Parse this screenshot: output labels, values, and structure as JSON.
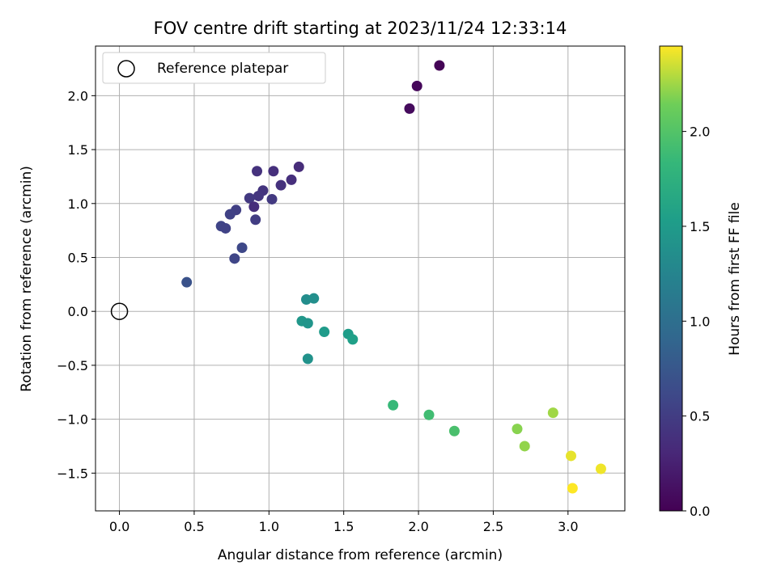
{
  "chart_data": {
    "type": "scatter",
    "title": "FOV centre drift starting at 2023/11/24 12:33:14",
    "xlabel": "Angular distance from reference (arcmin)",
    "ylabel": "Rotation from reference (arcmin)",
    "xlim": [
      -0.16,
      3.38
    ],
    "ylim": [
      -1.85,
      2.46
    ],
    "xticks": [
      0.0,
      0.5,
      1.0,
      1.5,
      2.0,
      2.5,
      3.0
    ],
    "xtick_labels": [
      "0.0",
      "0.5",
      "1.0",
      "1.5",
      "2.0",
      "2.5",
      "3.0"
    ],
    "yticks": [
      -1.5,
      -1.0,
      -0.5,
      0.0,
      0.5,
      1.0,
      1.5,
      2.0
    ],
    "ytick_labels": [
      "−1.5",
      "−1.0",
      "−0.5",
      "0.0",
      "0.5",
      "1.0",
      "1.5",
      "2.0"
    ],
    "grid": true,
    "legend_position": "top-left",
    "reference": {
      "name": "Reference platepar",
      "x": 0.0,
      "y": 0.0
    },
    "colorbar": {
      "label": "Hours from first FF file",
      "colormap": "viridis",
      "range": [
        0.0,
        2.45
      ],
      "ticks": [
        0.0,
        0.5,
        1.0,
        1.5,
        2.0
      ],
      "tick_labels": [
        "0.0",
        "0.5",
        "1.0",
        "1.5",
        "2.0"
      ]
    },
    "points": [
      {
        "x": 2.14,
        "y": 2.28,
        "hours": 0.02
      },
      {
        "x": 1.99,
        "y": 2.09,
        "hours": 0.05
      },
      {
        "x": 1.94,
        "y": 1.88,
        "hours": 0.08
      },
      {
        "x": 1.2,
        "y": 1.34,
        "hours": 0.35
      },
      {
        "x": 1.03,
        "y": 1.3,
        "hours": 0.38
      },
      {
        "x": 0.92,
        "y": 1.3,
        "hours": 0.4
      },
      {
        "x": 1.15,
        "y": 1.22,
        "hours": 0.37
      },
      {
        "x": 1.08,
        "y": 1.17,
        "hours": 0.39
      },
      {
        "x": 0.96,
        "y": 1.12,
        "hours": 0.42
      },
      {
        "x": 0.93,
        "y": 1.07,
        "hours": 0.44
      },
      {
        "x": 0.87,
        "y": 1.05,
        "hours": 0.46
      },
      {
        "x": 1.02,
        "y": 1.04,
        "hours": 0.47
      },
      {
        "x": 0.9,
        "y": 0.97,
        "hours": 0.36
      },
      {
        "x": 0.78,
        "y": 0.94,
        "hours": 0.52
      },
      {
        "x": 0.74,
        "y": 0.9,
        "hours": 0.54
      },
      {
        "x": 0.91,
        "y": 0.85,
        "hours": 0.5
      },
      {
        "x": 0.68,
        "y": 0.79,
        "hours": 0.57
      },
      {
        "x": 0.71,
        "y": 0.77,
        "hours": 0.55
      },
      {
        "x": 0.82,
        "y": 0.59,
        "hours": 0.6
      },
      {
        "x": 0.77,
        "y": 0.49,
        "hours": 0.58
      },
      {
        "x": 0.45,
        "y": 0.27,
        "hours": 0.7
      },
      {
        "x": 1.25,
        "y": 0.11,
        "hours": 1.35
      },
      {
        "x": 1.3,
        "y": 0.12,
        "hours": 1.37
      },
      {
        "x": 1.22,
        "y": -0.09,
        "hours": 1.45
      },
      {
        "x": 1.26,
        "y": -0.11,
        "hours": 1.43
      },
      {
        "x": 1.37,
        "y": -0.19,
        "hours": 1.5
      },
      {
        "x": 1.53,
        "y": -0.21,
        "hours": 1.52
      },
      {
        "x": 1.56,
        "y": -0.26,
        "hours": 1.55
      },
      {
        "x": 1.26,
        "y": -0.44,
        "hours": 1.4
      },
      {
        "x": 1.83,
        "y": -0.87,
        "hours": 1.85
      },
      {
        "x": 2.07,
        "y": -0.96,
        "hours": 1.9
      },
      {
        "x": 2.24,
        "y": -1.11,
        "hours": 1.95
      },
      {
        "x": 2.66,
        "y": -1.09,
        "hours": 2.2
      },
      {
        "x": 2.71,
        "y": -1.25,
        "hours": 2.22
      },
      {
        "x": 2.9,
        "y": -0.94,
        "hours": 2.25
      },
      {
        "x": 3.02,
        "y": -1.34,
        "hours": 2.4
      },
      {
        "x": 3.22,
        "y": -1.46,
        "hours": 2.42
      },
      {
        "x": 3.03,
        "y": -1.64,
        "hours": 2.45
      }
    ]
  }
}
